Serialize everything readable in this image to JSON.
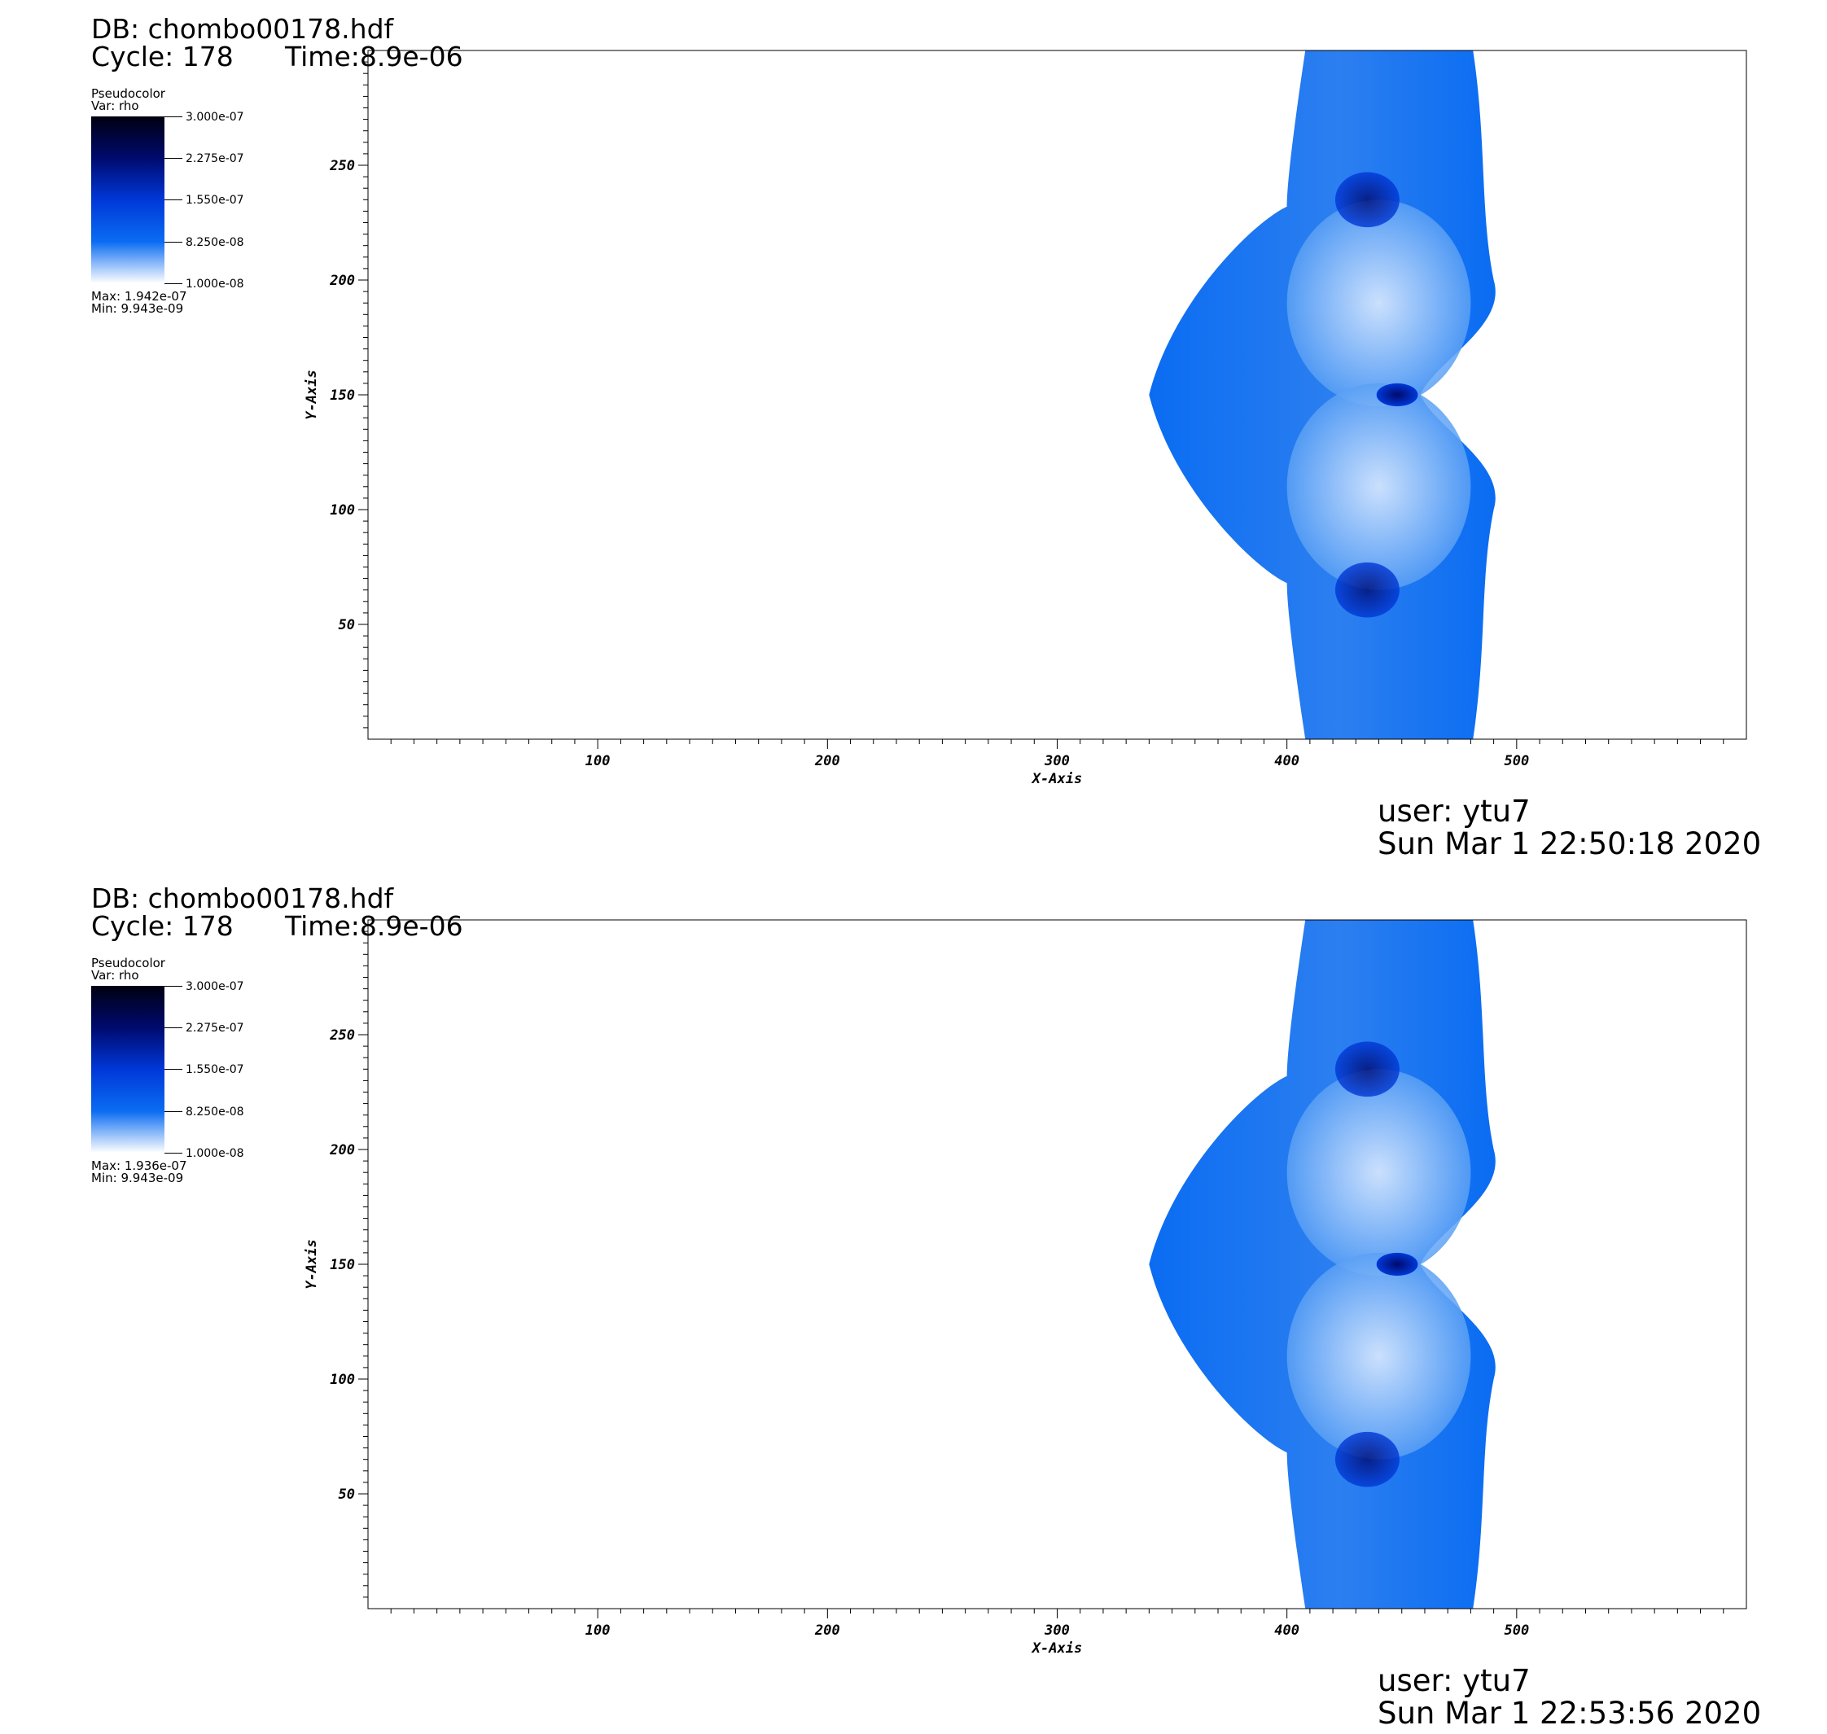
{
  "chart_data": [
    {
      "type": "heatmap",
      "db": "DB: chombo00178.hdf",
      "cycle": "Cycle: 178",
      "time": "Time:8.9e-06",
      "legend": {
        "plot_type": "Pseudocolor",
        "var": "Var: rho",
        "ticks": [
          "3.000e-07",
          "2.275e-07",
          "1.550e-07",
          "8.250e-08",
          "1.000e-08"
        ],
        "max": "Max: 1.942e-07",
        "min": "Min: 9.943e-09",
        "colormap": [
          "#ffffff",
          "#0a6cf2",
          "#0038d8",
          "#000a6e",
          "#000010"
        ]
      },
      "xlabel": "X-Axis",
      "ylabel": "Y-Axis",
      "xlim": [
        0,
        600
      ],
      "ylim": [
        0,
        300
      ],
      "xticks": [
        100,
        200,
        300,
        400,
        500
      ],
      "yticks": [
        50,
        100,
        150,
        200,
        250
      ],
      "user": "user: ytu7",
      "date": "Sun Mar  1 22:50:18 2020"
    },
    {
      "type": "heatmap",
      "db": "DB: chombo00178.hdf",
      "cycle": "Cycle: 178",
      "time": "Time:8.9e-06",
      "legend": {
        "plot_type": "Pseudocolor",
        "var": "Var: rho",
        "ticks": [
          "3.000e-07",
          "2.275e-07",
          "1.550e-07",
          "8.250e-08",
          "1.000e-08"
        ],
        "max": "Max: 1.936e-07",
        "min": "Min: 9.943e-09",
        "colormap": [
          "#ffffff",
          "#0a6cf2",
          "#0038d8",
          "#000a6e",
          "#000010"
        ]
      },
      "xlabel": "X-Axis",
      "ylabel": "Y-Axis",
      "xlim": [
        0,
        600
      ],
      "ylim": [
        0,
        300
      ],
      "xticks": [
        100,
        200,
        300,
        400,
        500
      ],
      "yticks": [
        50,
        100,
        150,
        200,
        250
      ],
      "user": "user: ytu7",
      "date": "Sun Mar  1 22:53:56 2020"
    }
  ]
}
